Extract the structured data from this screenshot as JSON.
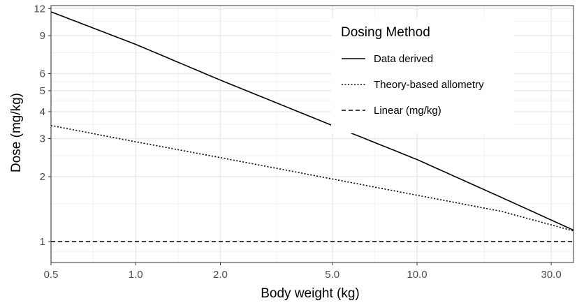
{
  "chart_data": {
    "type": "line",
    "xlabel": "Body weight (kg)",
    "ylabel": "Dose (mg/kg)",
    "x_scale": "log",
    "y_scale": "log",
    "xlim": [
      0.5,
      36
    ],
    "ylim": [
      0.8,
      12.4
    ],
    "x_ticks": [
      {
        "value": 0.5,
        "label": "0.5"
      },
      {
        "value": 1,
        "label": "1.0"
      },
      {
        "value": 2,
        "label": "2.0"
      },
      {
        "value": 5,
        "label": "5.0"
      },
      {
        "value": 10,
        "label": "10.0"
      },
      {
        "value": 30,
        "label": "30.0"
      }
    ],
    "x_minor_ticks": [
      0.707,
      1.414,
      3.162,
      7.071,
      17.32
    ],
    "y_ticks": [
      {
        "value": 1,
        "label": "1"
      },
      {
        "value": 2,
        "label": "2"
      },
      {
        "value": 3,
        "label": "3"
      },
      {
        "value": 4,
        "label": "4"
      },
      {
        "value": 5,
        "label": "5"
      },
      {
        "value": 6,
        "label": "6"
      },
      {
        "value": 9,
        "label": "9"
      },
      {
        "value": 12,
        "label": "12"
      }
    ],
    "y_minor_ticks": [
      0.9,
      1.5,
      2.5,
      3.5,
      4.5,
      5.5,
      7.5,
      10.5
    ],
    "grid": true,
    "legend": {
      "title": "Dosing Method",
      "position": "top-right"
    },
    "series": [
      {
        "name": "Data derived",
        "style": "solid",
        "x": [
          0.5,
          1,
          2,
          5,
          10,
          20,
          36
        ],
        "y": [
          11.6,
          8.2,
          5.6,
          3.45,
          2.4,
          1.6,
          1.13
        ]
      },
      {
        "name": "Theory-based allometry",
        "style": "dotted",
        "x": [
          0.5,
          1,
          2,
          5,
          10,
          20,
          36
        ],
        "y": [
          3.45,
          2.9,
          2.45,
          1.95,
          1.64,
          1.38,
          1.12
        ]
      },
      {
        "name": "Linear (mg/kg)",
        "style": "dashed",
        "x": [
          0.5,
          36
        ],
        "y": [
          1,
          1
        ]
      }
    ]
  }
}
